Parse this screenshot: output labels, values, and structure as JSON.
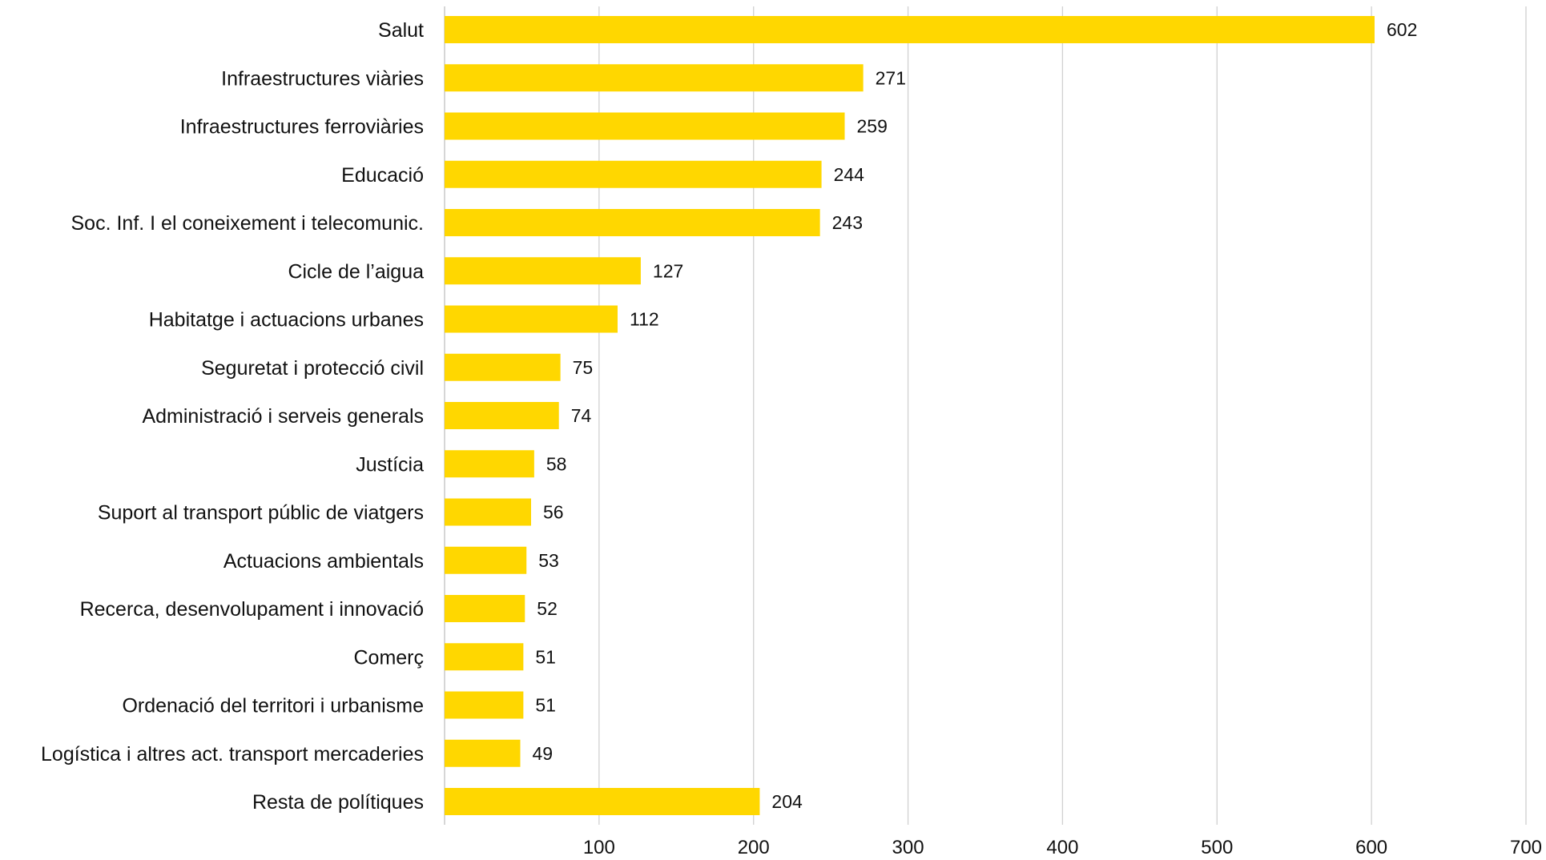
{
  "chart_data": {
    "type": "bar",
    "orientation": "horizontal",
    "categories": [
      "Salut",
      "Infraestructures viàries",
      "Infraestructures ferroviàries",
      "Educació",
      "Soc. Inf. I el coneixement i telecomunic.",
      "Cicle de l’aigua",
      "Habitatge i actuacions urbanes",
      "Seguretat i protecció civil",
      "Administració i serveis generals",
      "Justícia",
      "Suport al transport públic de viatgers",
      "Actuacions ambientals",
      "Recerca, desenvolupament i innovació",
      "Comerç",
      "Ordenació del territori i urbanisme",
      "Logística i altres act. transport mercaderies",
      "Resta de polítiques"
    ],
    "values": [
      602,
      271,
      259,
      244,
      243,
      127,
      112,
      75,
      74,
      58,
      56,
      53,
      52,
      51,
      51,
      49,
      204
    ],
    "value_labels": [
      "602",
      "271",
      "259",
      "244",
      "243",
      "127",
      "112",
      "75",
      "74",
      "58",
      "56",
      "53",
      "52",
      "51",
      "51",
      "49",
      "204"
    ],
    "xlim": [
      0,
      700
    ],
    "x_ticks": [
      100,
      200,
      300,
      400,
      500,
      600,
      700
    ],
    "x_tick_labels": [
      "100",
      "200",
      "300",
      "400",
      "500",
      "600",
      "700"
    ],
    "grid": true,
    "legend": "none",
    "bar_color": "#ffd700"
  }
}
